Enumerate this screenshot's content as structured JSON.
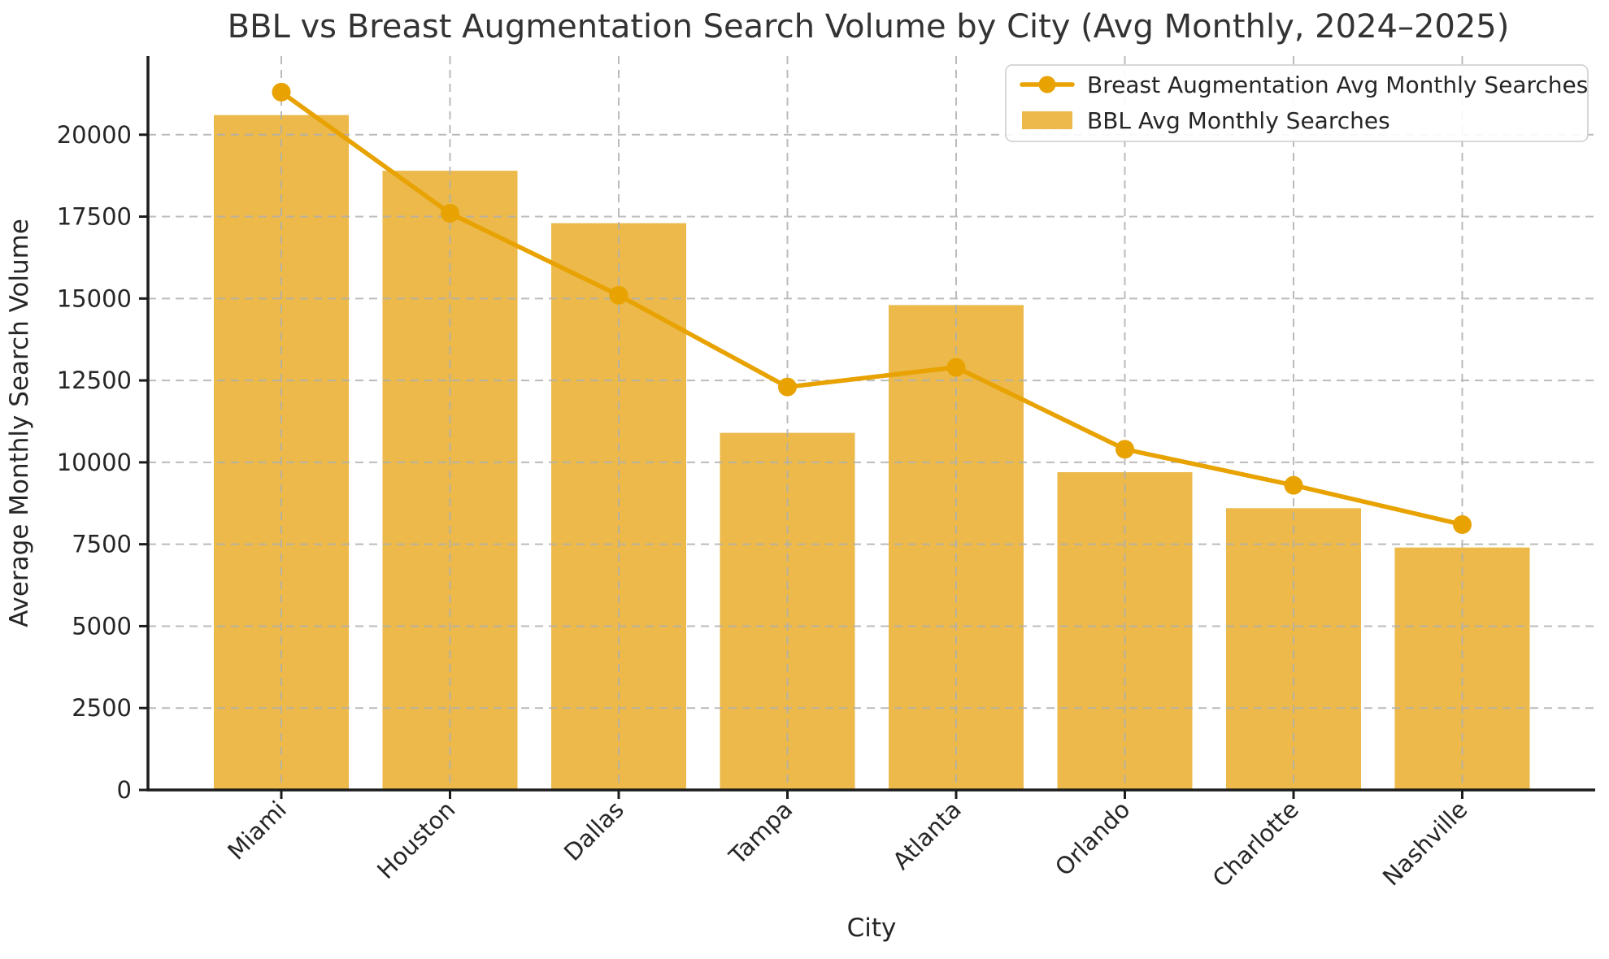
{
  "chart_data": {
    "type": "bar",
    "title": "BBL vs Breast Augmentation Search Volume by City (Avg Monthly, 2024–2025)",
    "xlabel": "City",
    "ylabel": "Average Monthly Search Volume",
    "categories": [
      "Miami",
      "Houston",
      "Dallas",
      "Tampa",
      "Atlanta",
      "Orlando",
      "Charlotte",
      "Nashville"
    ],
    "series": [
      {
        "name": "BBL Avg Monthly Searches",
        "kind": "bar",
        "color": "#ecb94a",
        "values": [
          20600,
          18900,
          17300,
          10900,
          14800,
          9700,
          8600,
          7400
        ]
      },
      {
        "name": "Breast Augmentation Avg Monthly Searches",
        "kind": "line",
        "color": "#e8a202",
        "values": [
          21300,
          17600,
          15100,
          12300,
          12900,
          10400,
          9300,
          8100
        ]
      }
    ],
    "ylim": [
      0,
      22400
    ],
    "yticks": [
      0,
      2500,
      5000,
      7500,
      10000,
      12500,
      15000,
      17500,
      20000
    ],
    "grid": true,
    "grid_style": "dashed",
    "legend": {
      "position": "upper-right",
      "entries": [
        {
          "label": "Breast Augmentation Avg Monthly Searches",
          "marker": "line-dot",
          "color": "#e8a202"
        },
        {
          "label": "BBL Avg Monthly Searches",
          "marker": "bar",
          "color": "#ecb94a"
        }
      ]
    },
    "colors": {
      "bar": "#ecb94a",
      "line": "#e8a202",
      "grid": "#b0b0b0",
      "axis": "#1c1c1c",
      "text": "#262626",
      "legend_border": "#cccccc",
      "background": "#ffffff"
    }
  }
}
